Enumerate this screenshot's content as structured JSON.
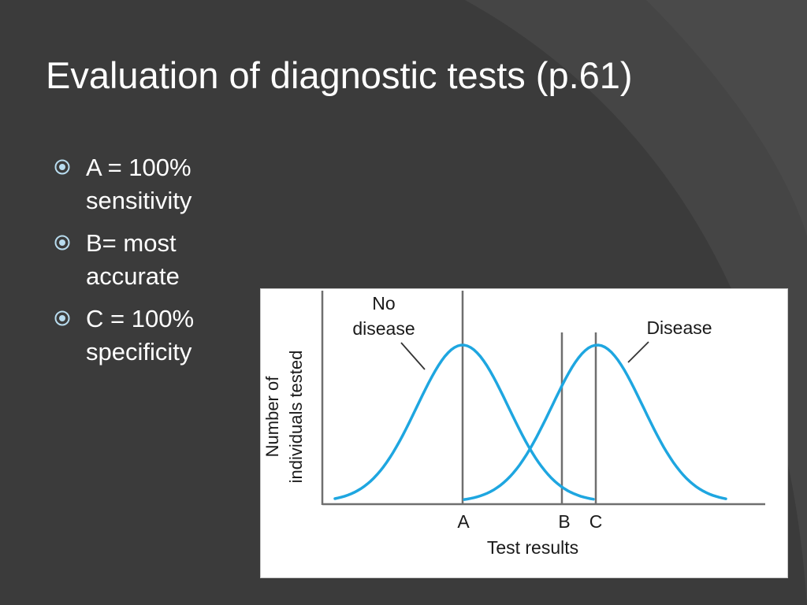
{
  "slide": {
    "title": "Evaluation of diagnostic tests (p.61)",
    "bullet_icon": "circled-dot-icon",
    "bullets": [
      {
        "text": "A = 100% sensitivity"
      },
      {
        "text": "B= most accurate"
      },
      {
        "text": "C = 100% specificity"
      }
    ]
  },
  "colors": {
    "background": "#3b3b3b",
    "curve": "#1ea6e0",
    "bullet": "#b8dcef"
  },
  "figure": {
    "curve_labels": {
      "no_disease_line1": "No",
      "no_disease_line2": "disease",
      "disease": "Disease"
    },
    "y_title_line1": "Number of",
    "y_title_line2": "individuals tested",
    "x_title": "Test results",
    "cutoffs": [
      {
        "label": "A"
      },
      {
        "label": "B"
      },
      {
        "label": "C"
      }
    ]
  }
}
